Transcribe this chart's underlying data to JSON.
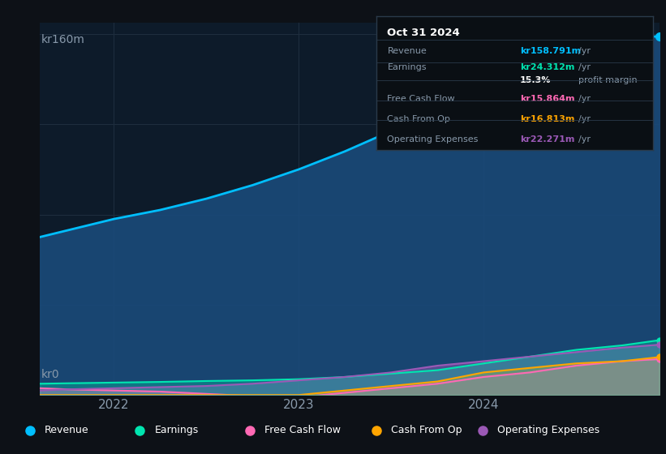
{
  "background_color": "#0d1117",
  "chart_bg": "#0d1b2a",
  "ylabel_top": "kr160m",
  "ylabel_bottom": "kr0",
  "ylim": [
    0,
    165
  ],
  "xlim_start": 2021.6,
  "xlim_end": 2024.95,
  "x_ticks": [
    2022,
    2023,
    2024
  ],
  "revenue_color": "#00bfff",
  "revenue_fill": "#1a4a7a",
  "earnings_color": "#00e5b0",
  "fcf_color": "#ff69b4",
  "cashfromop_color": "#ffa500",
  "opex_color": "#9b59b6",
  "revenue_data_x": [
    2021.6,
    2021.75,
    2022.0,
    2022.25,
    2022.5,
    2022.75,
    2023.0,
    2023.25,
    2023.5,
    2023.75,
    2024.0,
    2024.25,
    2024.5,
    2024.75,
    2024.95
  ],
  "revenue_data_y": [
    70,
    73,
    78,
    82,
    87,
    93,
    100,
    108,
    117,
    128,
    138,
    147,
    153,
    158,
    159
  ],
  "earnings_data_x": [
    2021.6,
    2021.75,
    2022.0,
    2022.25,
    2022.5,
    2022.75,
    2023.0,
    2023.25,
    2023.5,
    2023.75,
    2024.0,
    2024.25,
    2024.5,
    2024.75,
    2024.95
  ],
  "earnings_data_y": [
    5,
    5.2,
    5.5,
    5.8,
    6.2,
    6.5,
    7.0,
    8.0,
    9.5,
    11,
    14,
    17,
    20,
    22,
    24.3
  ],
  "fcf_data_x": [
    2021.6,
    2021.75,
    2022.0,
    2022.25,
    2022.5,
    2022.75,
    2023.0,
    2023.25,
    2023.5,
    2023.75,
    2024.0,
    2024.25,
    2024.5,
    2024.75,
    2024.95
  ],
  "fcf_data_y": [
    3,
    2.5,
    2.0,
    1.5,
    0.5,
    -0.5,
    -1.0,
    1.0,
    3.0,
    5.0,
    8.0,
    10,
    13,
    15,
    15.9
  ],
  "cashfromop_data_x": [
    2021.6,
    2021.75,
    2022.0,
    2022.25,
    2022.5,
    2022.75,
    2023.0,
    2023.25,
    2023.5,
    2023.75,
    2024.0,
    2024.25,
    2024.5,
    2024.75,
    2024.95
  ],
  "cashfromop_data_y": [
    0,
    0,
    0,
    0,
    0,
    0,
    0,
    2,
    4,
    6,
    10,
    12,
    14,
    15,
    16.8
  ],
  "opex_data_x": [
    2021.6,
    2021.75,
    2022.0,
    2022.25,
    2022.5,
    2022.75,
    2023.0,
    2023.25,
    2023.5,
    2023.75,
    2024.0,
    2024.25,
    2024.5,
    2024.75,
    2024.95
  ],
  "opex_data_y": [
    2,
    2.5,
    3.0,
    3.5,
    4.0,
    5.0,
    6.5,
    8.0,
    10.0,
    13.0,
    15.0,
    17.0,
    19.0,
    21.0,
    22.3
  ],
  "legend_items": [
    {
      "label": "Revenue",
      "color": "#00bfff"
    },
    {
      "label": "Earnings",
      "color": "#00e5b0"
    },
    {
      "label": "Free Cash Flow",
      "color": "#ff69b4"
    },
    {
      "label": "Cash From Op",
      "color": "#ffa500"
    },
    {
      "label": "Operating Expenses",
      "color": "#9b59b6"
    }
  ],
  "grid_color": "#1e2d3d",
  "tick_color": "#8899aa",
  "tooltip_bg": "#0a0f14",
  "tooltip_border": "#2a3a4a",
  "tooltip_title": "Oct 31 2024",
  "tooltip_rows": [
    {
      "label": "Revenue",
      "value": "kr158.791m",
      "suffix": " /yr",
      "color": "#00bfff"
    },
    {
      "label": "Earnings",
      "value": "kr24.312m",
      "suffix": " /yr",
      "color": "#00e5b0"
    },
    {
      "label": "",
      "value": "15.3%",
      "suffix": " profit margin",
      "color": "#ffffff"
    },
    {
      "label": "Free Cash Flow",
      "value": "kr15.864m",
      "suffix": " /yr",
      "color": "#ff69b4"
    },
    {
      "label": "Cash From Op",
      "value": "kr16.813m",
      "suffix": " /yr",
      "color": "#ffa500"
    },
    {
      "label": "Operating Expenses",
      "value": "kr22.271m",
      "suffix": " /yr",
      "color": "#9b59b6"
    }
  ]
}
